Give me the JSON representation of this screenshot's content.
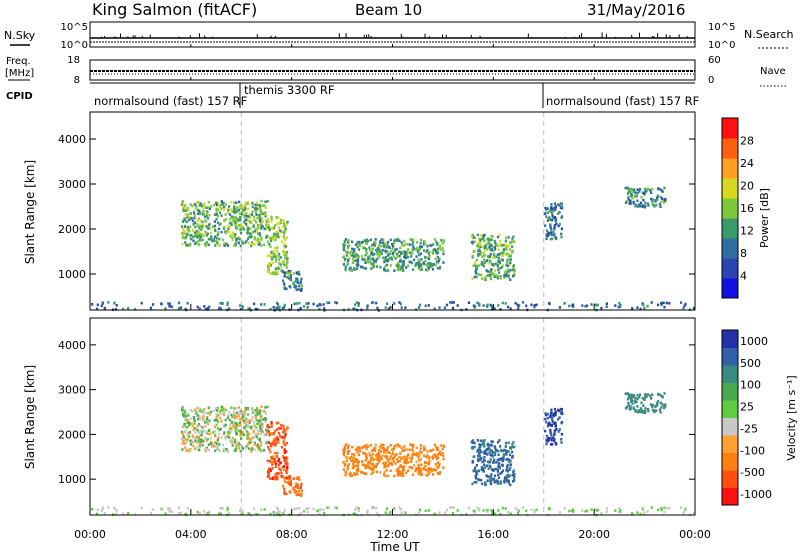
{
  "header": {
    "station": "King Salmon (fitACF)",
    "beam": "Beam 10",
    "date": "31/May/2016"
  },
  "status_panels": {
    "nsky_label": "N.Sky",
    "nsearch_label": "N.Search",
    "nsky_ticks": [
      "10^5",
      "10^0"
    ],
    "nsearch_ticks": [
      "10^5",
      "10^0"
    ],
    "freq_label_1": "Freq.",
    "freq_label_2": "[MHz]",
    "freq_ticks": [
      "18",
      "8"
    ],
    "nave_label": "Nave",
    "nave_ticks": [
      "60",
      "0"
    ],
    "cpid_label": "CPID",
    "cpid_segments": [
      {
        "label": "normalsound (fast) 157 RF",
        "start_h": 0,
        "end_h": 6
      },
      {
        "label": "themis 3300 RF",
        "start_h": 6,
        "end_h": 18
      },
      {
        "label": "normalsound (fast) 157 RF",
        "start_h": 18,
        "end_h": 24
      }
    ]
  },
  "power_colorbar": {
    "label": "Power [dB]",
    "ticks": [
      "4",
      "8",
      "12",
      "16",
      "20",
      "24",
      "28"
    ],
    "colors": [
      "#1010e0",
      "#2a44b0",
      "#2f6fa0",
      "#3a9a6a",
      "#7cc93a",
      "#d8d820",
      "#ffa020",
      "#ff6010",
      "#ff1010"
    ]
  },
  "velocity_colorbar": {
    "label": "Velocity [m s⁻¹]",
    "ticks": [
      "1000",
      "500",
      "100",
      "25",
      "-25",
      "-100",
      "-500",
      "-1000"
    ],
    "colors": [
      "#2233aa",
      "#2f60a8",
      "#3a8a80",
      "#4aaa50",
      "#60cc40",
      "#c8c8c8",
      "#ffa030",
      "#ff8010",
      "#ff5010",
      "#ff1010"
    ]
  },
  "chart_data": {
    "type": "heatmap",
    "xlabel": "Time UT",
    "ylabel": "Slant Range [km]",
    "x_ticks": [
      "00:00",
      "04:00",
      "08:00",
      "12:00",
      "16:00",
      "20:00",
      "00:00"
    ],
    "y_ticks": [
      "1000",
      "2000",
      "3000",
      "4000"
    ],
    "xlim_hours": [
      0,
      24
    ],
    "ylim_km": [
      200,
      4600
    ],
    "mode_change_hours": [
      6,
      18
    ],
    "echo_regions": [
      {
        "t0": 3.6,
        "t1": 7.0,
        "r0": 1650,
        "r1": 2650,
        "power_db": 14,
        "velocity": 0
      },
      {
        "t0": 7.0,
        "t1": 7.8,
        "r0": 1000,
        "r1": 2300,
        "power_db": 16,
        "velocity": -700
      },
      {
        "t0": 7.6,
        "t1": 8.4,
        "r0": 650,
        "r1": 1100,
        "power_db": 10,
        "velocity": -500
      },
      {
        "t0": 10.0,
        "t1": 14.0,
        "r0": 1100,
        "r1": 1800,
        "power_db": 12,
        "velocity": -150
      },
      {
        "t0": 15.1,
        "t1": 16.8,
        "r0": 900,
        "r1": 1900,
        "power_db": 14,
        "velocity": 400
      },
      {
        "t0": 18.0,
        "t1": 18.7,
        "r0": 1800,
        "r1": 2600,
        "power_db": 8,
        "velocity": 800
      },
      {
        "t0": 21.2,
        "t1": 22.8,
        "r0": 2500,
        "r1": 2950,
        "power_db": 10,
        "velocity": 150
      },
      {
        "t0": 0.0,
        "t1": 24.0,
        "r0": 220,
        "r1": 400,
        "power_db": 8,
        "velocity": 0
      }
    ]
  }
}
